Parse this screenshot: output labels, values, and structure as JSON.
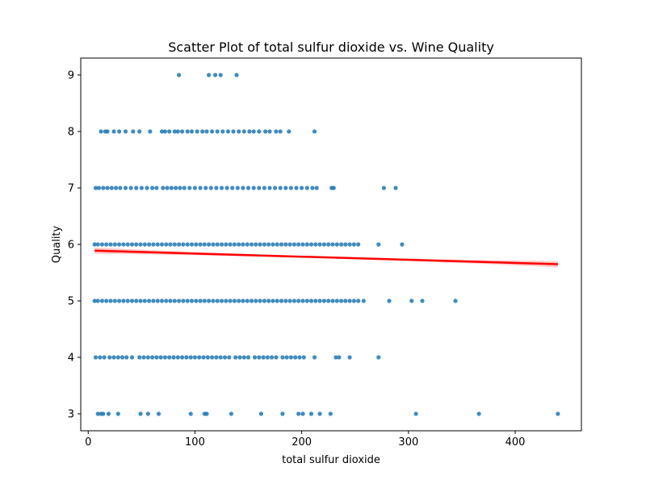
{
  "chart_data": {
    "type": "scatter",
    "title": "Scatter Plot of total sulfur dioxide vs. Wine Quality",
    "xlabel": "total sulfur dioxide",
    "ylabel": "Quality",
    "xlim": [
      -7,
      462
    ],
    "ylim": [
      2.7,
      9.3
    ],
    "xticks": [
      0,
      100,
      200,
      300,
      400
    ],
    "yticks": [
      3,
      4,
      5,
      6,
      7,
      8,
      9
    ],
    "grid": false,
    "legend": "none",
    "point_color": "#1f77b4",
    "fit_color": "#ff0000",
    "fit_band_color": "#ffb3b3",
    "series": [
      {
        "points": [
          [
            85,
            9
          ],
          [
            113,
            9
          ],
          [
            119,
            9
          ],
          [
            124,
            9
          ],
          [
            139,
            9
          ],
          [
            12,
            8
          ],
          [
            16,
            8
          ],
          [
            18,
            8
          ],
          [
            24,
            8
          ],
          [
            29,
            8
          ],
          [
            35,
            8
          ],
          [
            42,
            8
          ],
          [
            48,
            8
          ],
          [
            58,
            8
          ],
          [
            69,
            8
          ],
          [
            72,
            8
          ],
          [
            76,
            8
          ],
          [
            81,
            8
          ],
          [
            84,
            8
          ],
          [
            88,
            8
          ],
          [
            93,
            8
          ],
          [
            97,
            8
          ],
          [
            102,
            8
          ],
          [
            107,
            8
          ],
          [
            111,
            8
          ],
          [
            116,
            8
          ],
          [
            121,
            8
          ],
          [
            126,
            8
          ],
          [
            131,
            8
          ],
          [
            136,
            8
          ],
          [
            141,
            8
          ],
          [
            146,
            8
          ],
          [
            151,
            8
          ],
          [
            155,
            8
          ],
          [
            160,
            8
          ],
          [
            166,
            8
          ],
          [
            170,
            8
          ],
          [
            176,
            8
          ],
          [
            180,
            8
          ],
          [
            188,
            8
          ],
          [
            212,
            8
          ],
          [
            7,
            7
          ],
          [
            10,
            7
          ],
          [
            14,
            7
          ],
          [
            18,
            7
          ],
          [
            22,
            7
          ],
          [
            26,
            7
          ],
          [
            30,
            7
          ],
          [
            35,
            7
          ],
          [
            40,
            7
          ],
          [
            45,
            7
          ],
          [
            50,
            7
          ],
          [
            55,
            7
          ],
          [
            60,
            7
          ],
          [
            64,
            7
          ],
          [
            70,
            7
          ],
          [
            74,
            7
          ],
          [
            78,
            7
          ],
          [
            82,
            7
          ],
          [
            86,
            7
          ],
          [
            90,
            7
          ],
          [
            95,
            7
          ],
          [
            100,
            7
          ],
          [
            105,
            7
          ],
          [
            110,
            7
          ],
          [
            115,
            7
          ],
          [
            120,
            7
          ],
          [
            125,
            7
          ],
          [
            130,
            7
          ],
          [
            135,
            7
          ],
          [
            140,
            7
          ],
          [
            145,
            7
          ],
          [
            150,
            7
          ],
          [
            155,
            7
          ],
          [
            160,
            7
          ],
          [
            165,
            7
          ],
          [
            170,
            7
          ],
          [
            175,
            7
          ],
          [
            180,
            7
          ],
          [
            185,
            7
          ],
          [
            190,
            7
          ],
          [
            195,
            7
          ],
          [
            200,
            7
          ],
          [
            205,
            7
          ],
          [
            210,
            7
          ],
          [
            214,
            7
          ],
          [
            228,
            7
          ],
          [
            230,
            7
          ],
          [
            277,
            7
          ],
          [
            288,
            7
          ],
          [
            6,
            6
          ],
          [
            9,
            6
          ],
          [
            13,
            6
          ],
          [
            17,
            6
          ],
          [
            21,
            6
          ],
          [
            25,
            6
          ],
          [
            29,
            6
          ],
          [
            33,
            6
          ],
          [
            37,
            6
          ],
          [
            41,
            6
          ],
          [
            45,
            6
          ],
          [
            49,
            6
          ],
          [
            53,
            6
          ],
          [
            57,
            6
          ],
          [
            61,
            6
          ],
          [
            65,
            6
          ],
          [
            69,
            6
          ],
          [
            73,
            6
          ],
          [
            77,
            6
          ],
          [
            81,
            6
          ],
          [
            85,
            6
          ],
          [
            89,
            6
          ],
          [
            93,
            6
          ],
          [
            97,
            6
          ],
          [
            101,
            6
          ],
          [
            105,
            6
          ],
          [
            109,
            6
          ],
          [
            113,
            6
          ],
          [
            117,
            6
          ],
          [
            121,
            6
          ],
          [
            125,
            6
          ],
          [
            129,
            6
          ],
          [
            133,
            6
          ],
          [
            137,
            6
          ],
          [
            141,
            6
          ],
          [
            145,
            6
          ],
          [
            149,
            6
          ],
          [
            153,
            6
          ],
          [
            157,
            6
          ],
          [
            161,
            6
          ],
          [
            165,
            6
          ],
          [
            169,
            6
          ],
          [
            173,
            6
          ],
          [
            177,
            6
          ],
          [
            181,
            6
          ],
          [
            185,
            6
          ],
          [
            189,
            6
          ],
          [
            193,
            6
          ],
          [
            197,
            6
          ],
          [
            201,
            6
          ],
          [
            205,
            6
          ],
          [
            209,
            6
          ],
          [
            213,
            6
          ],
          [
            217,
            6
          ],
          [
            221,
            6
          ],
          [
            225,
            6
          ],
          [
            229,
            6
          ],
          [
            233,
            6
          ],
          [
            237,
            6
          ],
          [
            241,
            6
          ],
          [
            245,
            6
          ],
          [
            249,
            6
          ],
          [
            253,
            6
          ],
          [
            272,
            6
          ],
          [
            294,
            6
          ],
          [
            6,
            5
          ],
          [
            9,
            5
          ],
          [
            13,
            5
          ],
          [
            17,
            5
          ],
          [
            21,
            5
          ],
          [
            25,
            5
          ],
          [
            29,
            5
          ],
          [
            33,
            5
          ],
          [
            37,
            5
          ],
          [
            41,
            5
          ],
          [
            45,
            5
          ],
          [
            49,
            5
          ],
          [
            53,
            5
          ],
          [
            57,
            5
          ],
          [
            61,
            5
          ],
          [
            65,
            5
          ],
          [
            69,
            5
          ],
          [
            73,
            5
          ],
          [
            77,
            5
          ],
          [
            81,
            5
          ],
          [
            85,
            5
          ],
          [
            89,
            5
          ],
          [
            93,
            5
          ],
          [
            97,
            5
          ],
          [
            101,
            5
          ],
          [
            105,
            5
          ],
          [
            109,
            5
          ],
          [
            113,
            5
          ],
          [
            117,
            5
          ],
          [
            121,
            5
          ],
          [
            125,
            5
          ],
          [
            129,
            5
          ],
          [
            133,
            5
          ],
          [
            137,
            5
          ],
          [
            141,
            5
          ],
          [
            145,
            5
          ],
          [
            149,
            5
          ],
          [
            153,
            5
          ],
          [
            157,
            5
          ],
          [
            161,
            5
          ],
          [
            165,
            5
          ],
          [
            169,
            5
          ],
          [
            173,
            5
          ],
          [
            177,
            5
          ],
          [
            181,
            5
          ],
          [
            185,
            5
          ],
          [
            189,
            5
          ],
          [
            193,
            5
          ],
          [
            197,
            5
          ],
          [
            201,
            5
          ],
          [
            205,
            5
          ],
          [
            209,
            5
          ],
          [
            213,
            5
          ],
          [
            217,
            5
          ],
          [
            221,
            5
          ],
          [
            225,
            5
          ],
          [
            229,
            5
          ],
          [
            233,
            5
          ],
          [
            237,
            5
          ],
          [
            241,
            5
          ],
          [
            245,
            5
          ],
          [
            249,
            5
          ],
          [
            253,
            5
          ],
          [
            258,
            5
          ],
          [
            282,
            5
          ],
          [
            303,
            5
          ],
          [
            313,
            5
          ],
          [
            344,
            5
          ],
          [
            7,
            4
          ],
          [
            11,
            4
          ],
          [
            15,
            4
          ],
          [
            20,
            4
          ],
          [
            24,
            4
          ],
          [
            28,
            4
          ],
          [
            32,
            4
          ],
          [
            36,
            4
          ],
          [
            41,
            4
          ],
          [
            48,
            4
          ],
          [
            52,
            4
          ],
          [
            56,
            4
          ],
          [
            60,
            4
          ],
          [
            64,
            4
          ],
          [
            68,
            4
          ],
          [
            72,
            4
          ],
          [
            76,
            4
          ],
          [
            80,
            4
          ],
          [
            84,
            4
          ],
          [
            88,
            4
          ],
          [
            92,
            4
          ],
          [
            96,
            4
          ],
          [
            100,
            4
          ],
          [
            104,
            4
          ],
          [
            108,
            4
          ],
          [
            112,
            4
          ],
          [
            116,
            4
          ],
          [
            120,
            4
          ],
          [
            124,
            4
          ],
          [
            128,
            4
          ],
          [
            132,
            4
          ],
          [
            138,
            4
          ],
          [
            142,
            4
          ],
          [
            146,
            4
          ],
          [
            150,
            4
          ],
          [
            156,
            4
          ],
          [
            160,
            4
          ],
          [
            164,
            4
          ],
          [
            168,
            4
          ],
          [
            172,
            4
          ],
          [
            176,
            4
          ],
          [
            182,
            4
          ],
          [
            186,
            4
          ],
          [
            190,
            4
          ],
          [
            194,
            4
          ],
          [
            198,
            4
          ],
          [
            202,
            4
          ],
          [
            212,
            4
          ],
          [
            232,
            4
          ],
          [
            235,
            4
          ],
          [
            245,
            4
          ],
          [
            272,
            4
          ],
          [
            9,
            3
          ],
          [
            12,
            3
          ],
          [
            14,
            3
          ],
          [
            19,
            3
          ],
          [
            28,
            3
          ],
          [
            49,
            3
          ],
          [
            56,
            3
          ],
          [
            66,
            3
          ],
          [
            96,
            3
          ],
          [
            109,
            3
          ],
          [
            111,
            3
          ],
          [
            134,
            3
          ],
          [
            162,
            3
          ],
          [
            182,
            3
          ],
          [
            197,
            3
          ],
          [
            201,
            3
          ],
          [
            209,
            3
          ],
          [
            217,
            3
          ],
          [
            227,
            3
          ],
          [
            307,
            3
          ],
          [
            366,
            3
          ],
          [
            440,
            3
          ]
        ]
      }
    ],
    "fit": {
      "x": [
        6,
        440
      ],
      "y": [
        5.89,
        5.65
      ],
      "band_half_width": [
        0.015,
        0.055
      ]
    }
  }
}
